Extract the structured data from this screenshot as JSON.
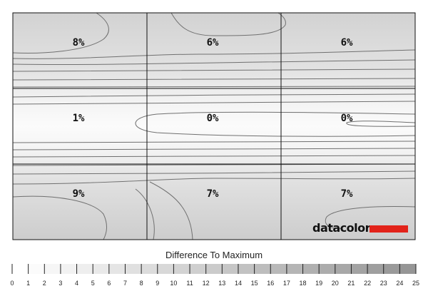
{
  "chart_data": {
    "type": "heatmap",
    "title": "Difference To Maximum",
    "grid": {
      "rows": 3,
      "cols": 3
    },
    "cells": [
      [
        "8%",
        "6%",
        "6%"
      ],
      [
        "1%",
        "0%",
        "0%"
      ],
      [
        "9%",
        "7%",
        "7%"
      ]
    ],
    "values": [
      [
        8,
        6,
        6
      ],
      [
        1,
        0,
        0
      ],
      [
        9,
        7,
        7
      ]
    ],
    "scale": {
      "min": 0,
      "max": 25,
      "ticks": [
        "0",
        "1",
        "2",
        "3",
        "4",
        "5",
        "6",
        "7",
        "8",
        "9",
        "10",
        "11",
        "12",
        "13",
        "14",
        "15",
        "16",
        "17",
        "18",
        "19",
        "20",
        "21",
        "22",
        "23",
        "24",
        "25"
      ]
    },
    "colors": {
      "light": "#ffffff",
      "dark": "#9a9a9a",
      "contour": "#666666",
      "brand_bar": "#e2231a"
    }
  },
  "brand": {
    "name": "datacolor"
  }
}
